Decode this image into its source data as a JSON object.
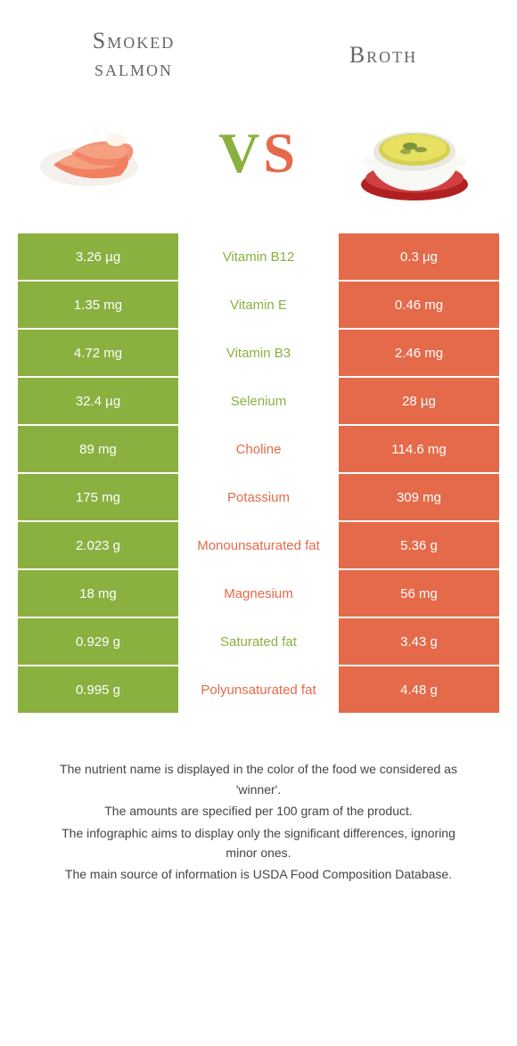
{
  "foods": {
    "left": {
      "name": "Smoked salmon",
      "color": "#8ab040"
    },
    "right": {
      "name": "Broth",
      "color": "#e46a4a"
    }
  },
  "vs": {
    "v": "V",
    "s": "S"
  },
  "rows": [
    {
      "left": "3.26 µg",
      "nutrient": "Vitamin B12",
      "right": "0.3 µg",
      "winner": "left"
    },
    {
      "left": "1.35 mg",
      "nutrient": "Vitamin E",
      "right": "0.46 mg",
      "winner": "left"
    },
    {
      "left": "4.72 mg",
      "nutrient": "Vitamin B3",
      "right": "2.46 mg",
      "winner": "left"
    },
    {
      "left": "32.4 µg",
      "nutrient": "Selenium",
      "right": "28 µg",
      "winner": "left"
    },
    {
      "left": "89 mg",
      "nutrient": "Choline",
      "right": "114.6 mg",
      "winner": "right"
    },
    {
      "left": "175 mg",
      "nutrient": "Potassium",
      "right": "309 mg",
      "winner": "right"
    },
    {
      "left": "2.023 g",
      "nutrient": "Monounsaturated fat",
      "right": "5.36 g",
      "winner": "right"
    },
    {
      "left": "18 mg",
      "nutrient": "Magnesium",
      "right": "56 mg",
      "winner": "right"
    },
    {
      "left": "0.929 g",
      "nutrient": "Saturated fat",
      "right": "3.43 g",
      "winner": "left"
    },
    {
      "left": "0.995 g",
      "nutrient": "Polyunsaturated fat",
      "right": "4.48 g",
      "winner": "right"
    }
  ],
  "footer": [
    "The nutrient name is displayed in the color of the food we considered as 'winner'.",
    "The amounts are specified per 100 gram of the product.",
    "The infographic aims to display only the significant differences, ignoring minor ones.",
    "The main source of information is USDA Food Composition Database."
  ]
}
